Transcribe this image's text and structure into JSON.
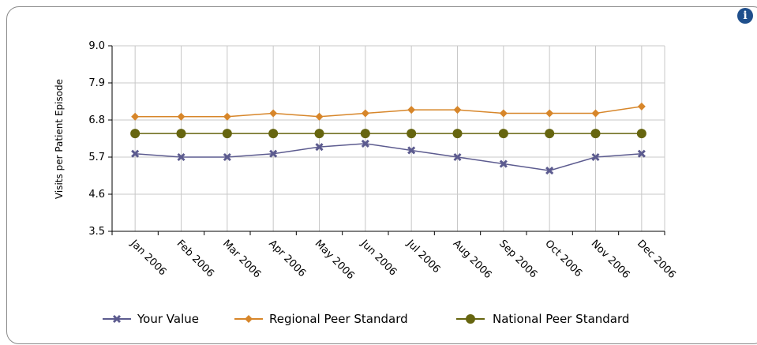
{
  "info_icon": {
    "glyph": "i",
    "name": "info-icon"
  },
  "chart_data": {
    "type": "line",
    "title": "",
    "xlabel": "",
    "ylabel": "Visits per Patient Episode",
    "ylim": [
      3.5,
      9.0
    ],
    "yticks": [
      "9.0",
      "7.9",
      "6.8",
      "5.7",
      "4.6",
      "3.5"
    ],
    "categories": [
      "Jan 2006",
      "Feb 2006",
      "Mar 2006",
      "Apr 2006",
      "May 2006",
      "Jun 2006",
      "Jul 2006",
      "Aug 2006",
      "Sep 2006",
      "Oct 2006",
      "Nov 2006",
      "Dec 2006"
    ],
    "grid": true,
    "legend_position": "bottom",
    "series": [
      {
        "name": "Your Value",
        "color": "#5c5b8f",
        "marker": "x",
        "values": [
          5.8,
          5.7,
          5.7,
          5.8,
          6.0,
          6.1,
          5.9,
          5.7,
          5.5,
          5.3,
          5.7,
          5.8
        ]
      },
      {
        "name": "Regional Peer Standard",
        "color": "#d7862a",
        "marker": "diamond",
        "values": [
          6.9,
          6.9,
          6.9,
          7.0,
          6.9,
          7.0,
          7.1,
          7.1,
          7.0,
          7.0,
          7.0,
          7.2
        ]
      },
      {
        "name": "National Peer Standard",
        "color": "#66650f",
        "marker": "circle",
        "values": [
          6.4,
          6.4,
          6.4,
          6.4,
          6.4,
          6.4,
          6.4,
          6.4,
          6.4,
          6.4,
          6.4,
          6.4
        ]
      }
    ]
  }
}
